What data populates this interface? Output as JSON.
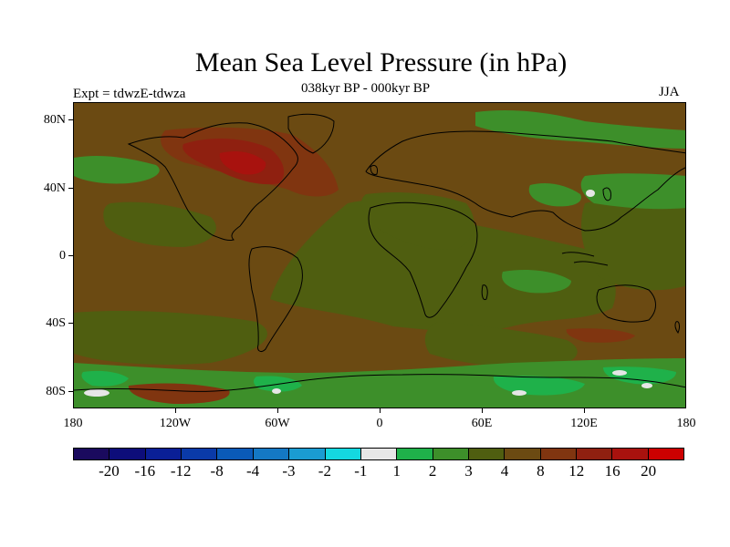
{
  "title": "Mean Sea Level Pressure (in hPa)",
  "subtitle_left": "Expt = tdwzE-tdwza",
  "subtitle_center": "038kyr BP - 000kyr BP",
  "subtitle_right": "JJA",
  "lat_labels": [
    "80N",
    "40N",
    "0",
    "40S",
    "80S"
  ],
  "lon_labels": [
    "180",
    "120W",
    "60W",
    "0",
    "60E",
    "120E",
    "180"
  ],
  "colorbar": {
    "labels": [
      "-20",
      "-16",
      "-12",
      "-8",
      "-4",
      "-3",
      "-2",
      "-1",
      "1",
      "2",
      "3",
      "4",
      "8",
      "12",
      "16",
      "20"
    ],
    "colors": [
      "#1a0a5e",
      "#0d0d7a",
      "#0a1f96",
      "#0a3aa8",
      "#0a5ab8",
      "#1478c4",
      "#1a9cd2",
      "#14d8e0",
      "#e6e6e6",
      "#1fb14a",
      "#3d8f2a",
      "#4f5e10",
      "#6b4a12",
      "#803510",
      "#8f2010",
      "#a8120e",
      "#cc0000"
    ]
  },
  "map": {
    "background_color": "#6b4a12",
    "field_colors": {
      "negative_small": "#3d8f2a",
      "green_light": "#1fb14a",
      "olive": "#4f5e10",
      "brown": "#6b4a12",
      "red_brown": "#803510",
      "red": "#8f2010",
      "white": "#e6e6e6"
    }
  }
}
